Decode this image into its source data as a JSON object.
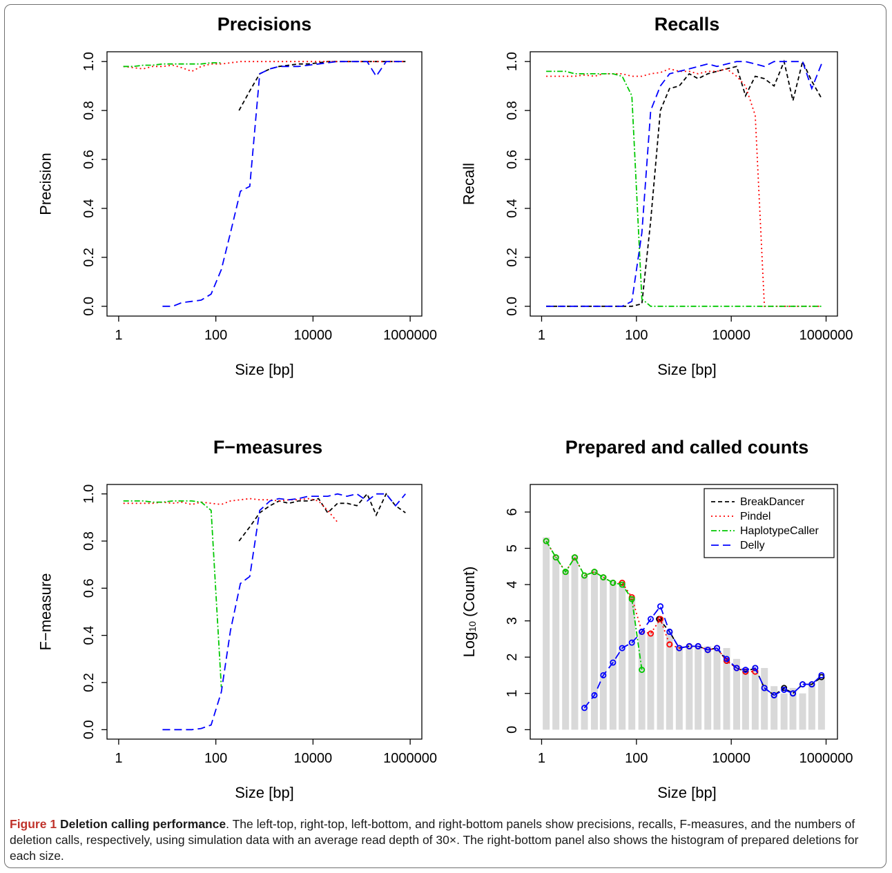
{
  "colors": {
    "BreakDancer": "#000000",
    "Pindel": "#ff0000",
    "HaplotypeCaller": "#00c800",
    "Delly": "#0000ff",
    "histogram": "#d9d9d9",
    "caption_label": "#c0332b"
  },
  "caption": {
    "label": "Figure 1",
    "title": "Deletion calling performance",
    "text": ". The left-top, right-top, left-bottom, and right-bottom panels show precisions, recalls, F-measures, and the numbers of deletion calls, respectively, using simulation data with an average read depth of 30×. The right-bottom panel also shows the histogram of prepared deletions for each size."
  },
  "chart_data": [
    {
      "type": "line",
      "title": "Precisions",
      "xlabel": "Size [bp]",
      "ylabel": "Precision",
      "x_scale": "log",
      "xlim": [
        1,
        1000000
      ],
      "ylim": [
        0,
        1
      ],
      "x_ticks": [
        1,
        100,
        10000,
        1000000
      ],
      "x_tick_labels": [
        "1",
        "100",
        "10000",
        "1000000"
      ],
      "y_ticks": [
        0,
        0.2,
        0.4,
        0.6,
        0.8,
        1.0
      ],
      "y_tick_labels": [
        "0.0",
        "0.2",
        "0.4",
        "0.6",
        "0.8",
        "1.0"
      ],
      "series": [
        {
          "name": "BreakDancer",
          "x": [
            300,
            500,
            800,
            1300,
            2000,
            3200,
            5000,
            8000,
            13000,
            20000,
            32000,
            50000,
            80000,
            130000,
            200000,
            320000,
            500000,
            800000
          ],
          "y": [
            0.8,
            0.88,
            0.95,
            0.97,
            0.98,
            0.985,
            0.99,
            0.99,
            0.995,
            1.0,
            1.0,
            1.0,
            1.0,
            1.0,
            1.0,
            1.0,
            1.0,
            1.0
          ]
        },
        {
          "name": "Pindel",
          "x": [
            1.25,
            2,
            3.2,
            5,
            8,
            13,
            20,
            32,
            50,
            80,
            130,
            200,
            320,
            500,
            800,
            1300,
            2000,
            3200,
            5000,
            8000,
            13000,
            20000,
            32000,
            50000,
            80000,
            130000,
            200000,
            320000,
            500000,
            800000
          ],
          "y": [
            0.98,
            0.975,
            0.97,
            0.98,
            0.98,
            0.985,
            0.975,
            0.96,
            0.98,
            0.99,
            0.99,
            0.995,
            1.0,
            1.0,
            1.0,
            1.0,
            1.0,
            1.0,
            1.0,
            1.0,
            1.0,
            1.0,
            1.0,
            1.0,
            1.0,
            1.0,
            1.0,
            1.0,
            1.0,
            1.0
          ]
        },
        {
          "name": "HaplotypeCaller",
          "x": [
            1.25,
            2,
            3.2,
            5,
            8,
            13,
            20,
            32,
            50,
            80,
            130
          ],
          "y": [
            0.98,
            0.98,
            0.985,
            0.985,
            0.99,
            0.99,
            0.99,
            0.99,
            0.99,
            0.995,
            0.995
          ]
        },
        {
          "name": "Delly",
          "x": [
            8,
            13,
            20,
            32,
            50,
            80,
            130,
            200,
            320,
            500,
            800,
            1300,
            2000,
            3200,
            5000,
            8000,
            13000,
            20000,
            32000,
            50000,
            80000,
            130000,
            200000,
            320000,
            500000,
            800000
          ],
          "y": [
            0.0,
            0.0,
            0.015,
            0.02,
            0.025,
            0.05,
            0.15,
            0.3,
            0.47,
            0.49,
            0.95,
            0.97,
            0.98,
            0.98,
            0.98,
            0.985,
            0.99,
            0.995,
            1.0,
            1.0,
            1.0,
            1.0,
            0.94,
            1.0,
            1.0,
            1.0
          ]
        }
      ]
    },
    {
      "type": "line",
      "title": "Recalls",
      "xlabel": "Size [bp]",
      "ylabel": "Recall",
      "x_scale": "log",
      "xlim": [
        1,
        1000000
      ],
      "ylim": [
        0,
        1
      ],
      "x_ticks": [
        1,
        100,
        10000,
        1000000
      ],
      "x_tick_labels": [
        "1",
        "100",
        "10000",
        "1000000"
      ],
      "y_ticks": [
        0,
        0.2,
        0.4,
        0.6,
        0.8,
        1.0
      ],
      "y_tick_labels": [
        "0.0",
        "0.2",
        "0.4",
        "0.6",
        "0.8",
        "1.0"
      ],
      "series": [
        {
          "name": "BreakDancer",
          "x": [
            1.25,
            2,
            3.2,
            5,
            8,
            13,
            20,
            32,
            50,
            80,
            130,
            200,
            320,
            500,
            800,
            1300,
            2000,
            3200,
            5000,
            8000,
            13000,
            20000,
            32000,
            50000,
            80000,
            130000,
            200000,
            320000,
            500000,
            800000
          ],
          "y": [
            0,
            0,
            0,
            0,
            0,
            0,
            0,
            0,
            0,
            0,
            0.01,
            0.35,
            0.8,
            0.89,
            0.9,
            0.95,
            0.93,
            0.95,
            0.96,
            0.97,
            0.98,
            0.86,
            0.94,
            0.93,
            0.9,
            1.0,
            0.84,
            1.0,
            0.92,
            0.85
          ]
        },
        {
          "name": "Pindel",
          "x": [
            1.25,
            2,
            3.2,
            5,
            8,
            13,
            20,
            32,
            50,
            80,
            130,
            200,
            320,
            500,
            800,
            1300,
            2000,
            3200,
            5000,
            8000,
            13000,
            20000,
            32000,
            50000,
            80000,
            130000,
            200000,
            320000,
            500000,
            800000
          ],
          "y": [
            0.94,
            0.94,
            0.94,
            0.94,
            0.945,
            0.94,
            0.95,
            0.95,
            0.95,
            0.94,
            0.94,
            0.95,
            0.955,
            0.97,
            0.96,
            0.96,
            0.95,
            0.96,
            0.96,
            0.97,
            0.94,
            0.9,
            0.78,
            0.0,
            0.0,
            0.0,
            0.0,
            0.0,
            0.0,
            0.0
          ]
        },
        {
          "name": "HaplotypeCaller",
          "x": [
            1.25,
            2,
            3.2,
            5,
            8,
            13,
            20,
            32,
            50,
            80,
            130,
            200,
            320,
            500,
            800,
            1300,
            2000,
            3200,
            5000,
            8000,
            13000,
            20000,
            32000,
            50000,
            80000,
            130000,
            200000,
            320000,
            500000,
            800000
          ],
          "y": [
            0.96,
            0.96,
            0.96,
            0.95,
            0.95,
            0.95,
            0.95,
            0.95,
            0.94,
            0.86,
            0.03,
            0.0,
            0.0,
            0.0,
            0.0,
            0.0,
            0.0,
            0.0,
            0.0,
            0.0,
            0.0,
            0.0,
            0.0,
            0.0,
            0.0,
            0.0,
            0.0,
            0.0,
            0.0,
            0.0
          ]
        },
        {
          "name": "Delly",
          "x": [
            1.25,
            2,
            3.2,
            5,
            8,
            13,
            20,
            32,
            50,
            80,
            130,
            200,
            320,
            500,
            800,
            1300,
            2000,
            3200,
            5000,
            8000,
            13000,
            20000,
            32000,
            50000,
            80000,
            130000,
            200000,
            320000,
            500000,
            800000
          ],
          "y": [
            0,
            0,
            0,
            0,
            0,
            0,
            0,
            0,
            0,
            0.02,
            0.3,
            0.8,
            0.9,
            0.95,
            0.96,
            0.97,
            0.98,
            0.99,
            0.98,
            0.99,
            1.0,
            1.0,
            0.99,
            0.98,
            1.0,
            1.0,
            1.0,
            1.0,
            0.89,
            0.99
          ]
        }
      ]
    },
    {
      "type": "line",
      "title": "F−measures",
      "xlabel": "Size [bp]",
      "ylabel": "F−measure",
      "x_scale": "log",
      "xlim": [
        1,
        1000000
      ],
      "ylim": [
        0,
        1
      ],
      "x_ticks": [
        1,
        100,
        10000,
        1000000
      ],
      "x_tick_labels": [
        "1",
        "100",
        "10000",
        "1000000"
      ],
      "y_ticks": [
        0,
        0.2,
        0.4,
        0.6,
        0.8,
        1.0
      ],
      "y_tick_labels": [
        "0.0",
        "0.2",
        "0.4",
        "0.6",
        "0.8",
        "1.0"
      ],
      "series": [
        {
          "name": "BreakDancer",
          "x": [
            300,
            500,
            800,
            1300,
            2000,
            3200,
            5000,
            8000,
            13000,
            20000,
            32000,
            50000,
            80000,
            130000,
            200000,
            320000,
            500000,
            800000
          ],
          "y": [
            0.8,
            0.86,
            0.92,
            0.95,
            0.97,
            0.96,
            0.97,
            0.97,
            0.98,
            0.92,
            0.96,
            0.96,
            0.95,
            1.0,
            0.91,
            1.0,
            0.95,
            0.92
          ]
        },
        {
          "name": "Pindel",
          "x": [
            1.25,
            2,
            3.2,
            5,
            8,
            13,
            20,
            32,
            50,
            80,
            130,
            200,
            320,
            500,
            800,
            1300,
            2000,
            3200,
            5000,
            8000,
            13000,
            20000,
            32000
          ],
          "y": [
            0.96,
            0.96,
            0.96,
            0.96,
            0.965,
            0.96,
            0.965,
            0.955,
            0.965,
            0.96,
            0.955,
            0.97,
            0.975,
            0.98,
            0.975,
            0.975,
            0.97,
            0.975,
            0.975,
            0.98,
            0.97,
            0.93,
            0.88
          ]
        },
        {
          "name": "HaplotypeCaller",
          "x": [
            1.25,
            2,
            3.2,
            5,
            8,
            13,
            20,
            32,
            50,
            80,
            130
          ],
          "y": [
            0.97,
            0.97,
            0.97,
            0.965,
            0.965,
            0.97,
            0.97,
            0.97,
            0.965,
            0.93,
            0.18
          ]
        },
        {
          "name": "Delly",
          "x": [
            8,
            13,
            20,
            32,
            50,
            80,
            130,
            200,
            320,
            500,
            800,
            1300,
            2000,
            3200,
            5000,
            8000,
            13000,
            20000,
            32000,
            50000,
            80000,
            130000,
            200000,
            320000,
            500000,
            800000
          ],
          "y": [
            0.0,
            0.0,
            0.0,
            0.0,
            0.005,
            0.02,
            0.16,
            0.42,
            0.62,
            0.65,
            0.93,
            0.97,
            0.98,
            0.975,
            0.98,
            0.99,
            0.99,
            0.99,
            1.0,
            0.99,
            1.0,
            0.97,
            1.0,
            1.0,
            0.95,
            1.0
          ]
        }
      ]
    },
    {
      "type": "bar",
      "title": "Prepared and called counts",
      "xlabel": "Size [bp]",
      "ylabel": "Log10 (Count)",
      "ylabel_main": "Log",
      "ylabel_sub": "10",
      "ylabel_rest": " (Count)",
      "x_scale": "log",
      "xlim": [
        1,
        1000000
      ],
      "ylim": [
        0,
        6.5
      ],
      "x_ticks": [
        1,
        100,
        10000,
        1000000
      ],
      "x_tick_labels": [
        "1",
        "100",
        "10000",
        "1000000"
      ],
      "y_ticks": [
        0,
        1,
        2,
        3,
        4,
        5,
        6
      ],
      "y_tick_labels": [
        "0",
        "1",
        "2",
        "3",
        "4",
        "5",
        "6"
      ],
      "legend_position": "top-right",
      "legend": [
        "BreakDancer",
        "Pindel",
        "HaplotypeCaller",
        "Delly"
      ],
      "bins_x": [
        1.25,
        2,
        3.2,
        5,
        8,
        13,
        20,
        32,
        50,
        80,
        130,
        200,
        320,
        500,
        800,
        1300,
        2000,
        3200,
        5000,
        8000,
        13000,
        20000,
        32000,
        50000,
        80000,
        130000,
        200000,
        320000,
        500000,
        800000
      ],
      "prepared_counts": [
        5.3,
        4.8,
        4.4,
        4.8,
        4.25,
        4.4,
        4.25,
        4.1,
        4.05,
        3.65,
        2.75,
        2.7,
        3.1,
        2.7,
        2.3,
        2.35,
        2.3,
        2.3,
        2.2,
        2.25,
        1.95,
        1.7,
        1.65,
        1.7,
        1.2,
        1.0,
        1.15,
        1.0,
        1.3,
        1.45
      ],
      "series": [
        {
          "name": "BreakDancer",
          "x": [
            300,
            500,
            800,
            1300,
            2000,
            3200,
            5000,
            8000,
            13000,
            20000,
            32000,
            50000,
            80000,
            130000,
            200000,
            320000,
            500000,
            800000
          ],
          "y": [
            3.05,
            2.7,
            2.25,
            2.3,
            2.3,
            2.2,
            2.25,
            1.9,
            1.7,
            1.6,
            1.7,
            1.15,
            0.95,
            1.15,
            1.0,
            1.25,
            1.25,
            1.45
          ]
        },
        {
          "name": "Pindel",
          "x": [
            1.25,
            2,
            3.2,
            5,
            8,
            13,
            20,
            32,
            50,
            80,
            130,
            200,
            320,
            500,
            800,
            1300,
            2000,
            3200,
            5000,
            8000,
            13000,
            20000,
            32000
          ],
          "y": [
            5.2,
            4.75,
            4.35,
            4.75,
            4.25,
            4.35,
            4.2,
            4.05,
            4.05,
            3.65,
            2.7,
            2.65,
            3.05,
            2.35,
            2.25,
            2.3,
            2.3,
            2.2,
            2.25,
            1.9,
            1.7,
            1.6,
            1.6
          ]
        },
        {
          "name": "HaplotypeCaller",
          "x": [
            1.25,
            2,
            3.2,
            5,
            8,
            13,
            20,
            32,
            50,
            80,
            130
          ],
          "y": [
            5.2,
            4.75,
            4.35,
            4.75,
            4.25,
            4.35,
            4.2,
            4.05,
            4.0,
            3.6,
            1.65
          ]
        },
        {
          "name": "Delly",
          "x": [
            8,
            13,
            20,
            32,
            50,
            80,
            130,
            200,
            320,
            500,
            800,
            1300,
            2000,
            3200,
            5000,
            8000,
            13000,
            20000,
            32000,
            50000,
            80000,
            130000,
            200000,
            320000,
            500000,
            800000
          ],
          "y": [
            0.6,
            0.95,
            1.5,
            1.85,
            2.25,
            2.4,
            2.7,
            3.05,
            3.4,
            2.7,
            2.25,
            2.3,
            2.3,
            2.2,
            2.25,
            1.95,
            1.7,
            1.65,
            1.7,
            1.15,
            0.95,
            1.1,
            1.0,
            1.25,
            1.25,
            1.5
          ]
        }
      ]
    }
  ]
}
